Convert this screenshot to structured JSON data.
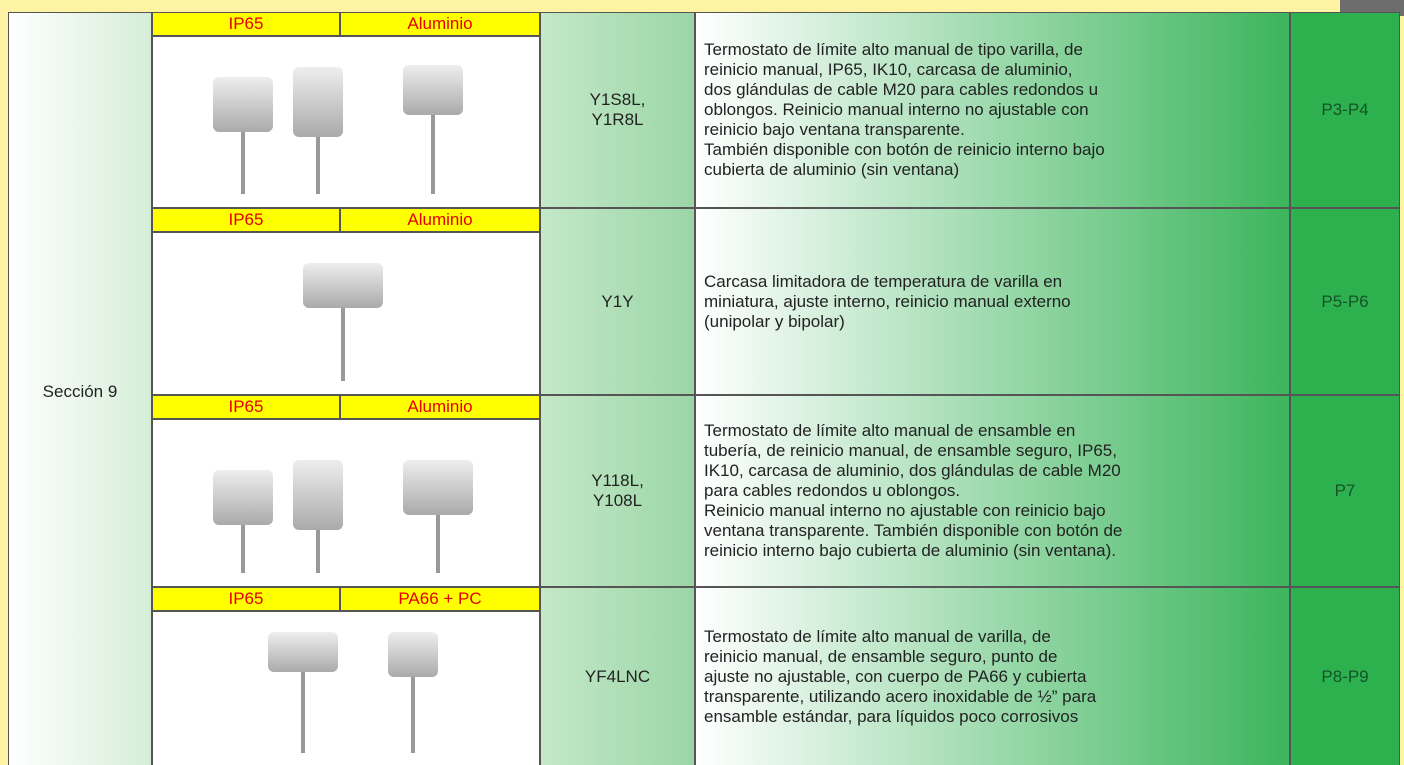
{
  "section": "Sección 9",
  "rows": [
    {
      "tags": [
        "IP65",
        "Aluminio"
      ],
      "model": [
        "Y1S8L,",
        "Y1R8L"
      ],
      "description": [
        "Termostato de límite alto manual de tipo varilla, de",
        "reinicio manual, IP65, IK10, carcasa de aluminio,",
        "dos glándulas de cable M20 para cables redondos u",
        "oblongos. Reinicio manual interno no ajustable con",
        "reinicio bajo ventana transparente.",
        "También disponible con botón de reinicio interno bajo",
        "cubierta de aluminio (sin ventana)"
      ],
      "page": "P3-P4"
    },
    {
      "tags": [
        "IP65",
        "Aluminio"
      ],
      "model": [
        "Y1Y"
      ],
      "description": [
        "Carcasa limitadora de temperatura de varilla en",
        "miniatura, ajuste interno, reinicio manual externo",
        "(unipolar y bipolar)"
      ],
      "page": "P5-P6"
    },
    {
      "tags": [
        "IP65",
        "Aluminio"
      ],
      "model": [
        "Y118L,",
        "Y108L"
      ],
      "description": [
        "Termostato de límite alto manual de ensamble en",
        "tubería, de reinicio manual, de ensamble seguro, IP65,",
        "IK10, carcasa de aluminio, dos glándulas de cable M20",
        "para cables redondos u oblongos.",
        "Reinicio manual interno no ajustable con reinicio bajo",
        "ventana transparente. También disponible con botón de",
        "reinicio interno bajo cubierta de aluminio (sin ventana)."
      ],
      "page": "P7"
    },
    {
      "tags": [
        "IP65",
        "PA66 + PC"
      ],
      "model": [
        "YF4LNC"
      ],
      "description": [
        "Termostato de límite alto manual de varilla, de",
        "reinicio manual, de ensamble seguro, punto de",
        "ajuste no ajustable, con cuerpo de PA66 y cubierta",
        "transparente, utilizando acero inoxidable de ½” para",
        "ensamble estándar, para líquidos poco corrosivos"
      ],
      "page": "P8-P9"
    }
  ]
}
